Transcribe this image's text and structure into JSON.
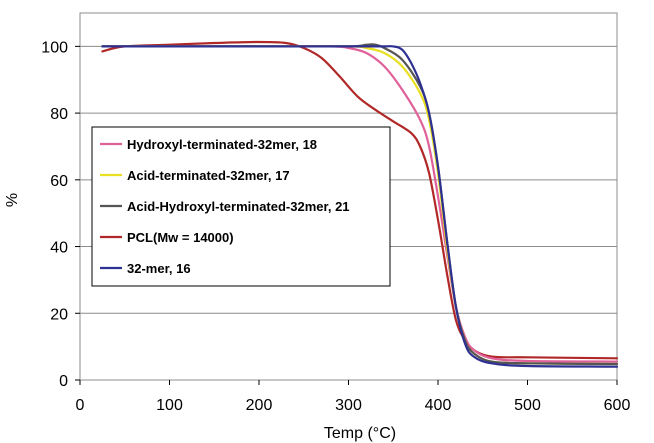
{
  "chart_data": {
    "type": "line",
    "title": "",
    "xlabel": "Temp (°C)",
    "ylabel": "%",
    "xlim": [
      0,
      600
    ],
    "ylim": [
      0,
      110
    ],
    "x_ticks": [
      0,
      100,
      200,
      300,
      400,
      500,
      600
    ],
    "y_ticks": [
      0,
      20,
      40,
      60,
      80,
      100
    ],
    "grid": "horizontal",
    "legend_position": "center-left",
    "series": [
      {
        "name": "Hydroxyl-terminated-32mer, 18",
        "color": "#e0609a",
        "x": [
          25,
          100,
          200,
          280,
          300,
          320,
          340,
          360,
          380,
          390,
          400,
          410,
          420,
          430,
          440,
          460,
          500,
          600
        ],
        "y": [
          100,
          100,
          100,
          100,
          99.5,
          98,
          94,
          87,
          78,
          70,
          55,
          38,
          22,
          13,
          9,
          6.5,
          5.7,
          5.5
        ]
      },
      {
        "name": "Acid-terminated-32mer, 17",
        "color": "#e8e020",
        "x": [
          25,
          100,
          200,
          300,
          320,
          340,
          360,
          380,
          390,
          400,
          410,
          420,
          430,
          440,
          460,
          500,
          600
        ],
        "y": [
          100,
          100,
          100,
          100,
          99.5,
          98,
          94,
          86,
          78,
          62,
          40,
          22,
          12,
          8,
          5.5,
          5,
          4.8
        ]
      },
      {
        "name": "Acid-Hydroxyl-terminated-32mer, 21",
        "color": "#555555",
        "x": [
          25,
          100,
          200,
          300,
          320,
          330,
          340,
          360,
          380,
          390,
          400,
          410,
          420,
          430,
          440,
          460,
          500,
          600
        ],
        "y": [
          100,
          100,
          100,
          100,
          100.5,
          100.5,
          99.5,
          96,
          88,
          80,
          64,
          42,
          22,
          12,
          8,
          5.5,
          5,
          4.8
        ]
      },
      {
        "name": "PCL(Mw = 14000)",
        "color": "#b02828",
        "x": [
          25,
          50,
          100,
          150,
          200,
          230,
          250,
          270,
          290,
          310,
          330,
          350,
          370,
          380,
          390,
          400,
          410,
          420,
          430,
          440,
          460,
          500,
          600
        ],
        "y": [
          98.5,
          100,
          100.5,
          101,
          101.3,
          101,
          99.5,
          96.5,
          91,
          85,
          81,
          77.5,
          74,
          70,
          62,
          48,
          32,
          18,
          12,
          9,
          7,
          6.8,
          6.5
        ]
      },
      {
        "name": "32-mer, 16",
        "color": "#2e3192",
        "x": [
          25,
          100,
          200,
          300,
          340,
          350,
          360,
          370,
          380,
          390,
          400,
          410,
          420,
          430,
          440,
          460,
          500,
          600
        ],
        "y": [
          100,
          100,
          100,
          100,
          100,
          100,
          99,
          95,
          89,
          80,
          64,
          42,
          22,
          11,
          7,
          5,
          4.2,
          4
        ]
      }
    ]
  }
}
